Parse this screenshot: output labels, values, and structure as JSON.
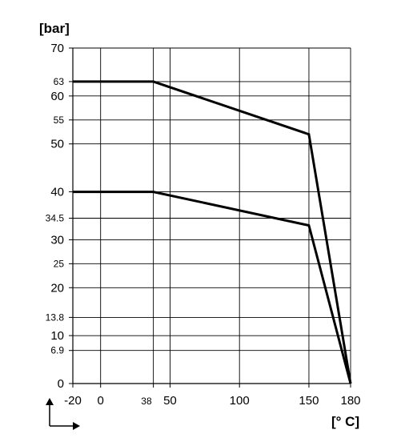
{
  "chart_data": {
    "type": "line",
    "ylabel": "[bar]",
    "xlabel": "[° C]",
    "xlim": [
      -20,
      180
    ],
    "ylim": [
      0,
      70
    ],
    "x_ticks": [
      {
        "v": -20,
        "label": "-20",
        "small": false
      },
      {
        "v": 0,
        "label": "0",
        "small": false
      },
      {
        "v": 38,
        "label": "38",
        "small": true
      },
      {
        "v": 50,
        "label": "50",
        "small": false
      },
      {
        "v": 100,
        "label": "100",
        "small": false
      },
      {
        "v": 150,
        "label": "150",
        "small": false
      },
      {
        "v": 180,
        "label": "180",
        "small": false
      }
    ],
    "y_ticks": [
      {
        "v": 0,
        "label": "0",
        "small": false
      },
      {
        "v": 6.9,
        "label": "6.9",
        "small": true
      },
      {
        "v": 10,
        "label": "10",
        "small": false
      },
      {
        "v": 13.8,
        "label": "13.8",
        "small": true
      },
      {
        "v": 20,
        "label": "20",
        "small": false
      },
      {
        "v": 25,
        "label": "25",
        "small": true
      },
      {
        "v": 30,
        "label": "30",
        "small": false
      },
      {
        "v": 34.5,
        "label": "34.5",
        "small": true
      },
      {
        "v": 40,
        "label": "40",
        "small": false
      },
      {
        "v": 50,
        "label": "50",
        "small": false
      },
      {
        "v": 55,
        "label": "55",
        "small": true
      },
      {
        "v": 60,
        "label": "60",
        "small": false
      },
      {
        "v": 63,
        "label": "63",
        "small": true
      },
      {
        "v": 70,
        "label": "70",
        "small": false
      }
    ],
    "series": [
      {
        "values": [
          [
            -20,
            63
          ],
          [
            38,
            63
          ],
          [
            150,
            52
          ],
          [
            180,
            0
          ]
        ]
      },
      {
        "values": [
          [
            -20,
            40
          ],
          [
            38,
            40
          ],
          [
            150,
            33
          ],
          [
            180,
            0
          ]
        ]
      }
    ],
    "grid": true,
    "colors": {
      "line": "#000000",
      "grid": "#000000"
    }
  }
}
